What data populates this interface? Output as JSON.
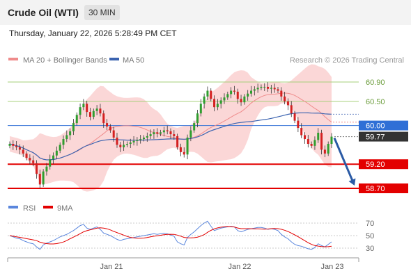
{
  "header": {
    "title": "Crude Oil (WTI)",
    "timeframe": "30 MIN",
    "datetime": "Thursday, January 22, 2026 5:28:49 PM CET"
  },
  "legend": {
    "ma20_bb": "MA 20 + Bollinger Bands",
    "ma50": "MA 50",
    "copyright": "Research © 2026 Trading Central"
  },
  "rsi_legend": {
    "rsi": "RSI",
    "ma9": "9MA"
  },
  "colors": {
    "candle_up": "#2f9e2f",
    "candle_down": "#d42020",
    "bollinger": "#f9caca",
    "ma20": "#ef8b8b",
    "ma50": "#3b63b0",
    "support": "#e30000",
    "resistance_minor": "#a6cf7a",
    "pivot": "#2f6fd6",
    "last_price": "#333333",
    "rsi": "#5a86dd",
    "rsi_ma9": "#e30000",
    "arrow": "#2a5aa5"
  },
  "chart_data": [
    {
      "type": "candlestick",
      "title": "Crude Oil (WTI)",
      "timeframe": "30 MIN",
      "x_ticks": [
        "Jan 21",
        "Jan 22",
        "Jan 23"
      ],
      "ylim": [
        58.62,
        61.1
      ],
      "levels": [
        {
          "value": 60.9,
          "label": "60.90",
          "kind": "resistance"
        },
        {
          "value": 60.5,
          "label": "60.50",
          "kind": "resistance"
        },
        {
          "value": 60.0,
          "label": "60.00",
          "kind": "pivot"
        },
        {
          "value": 59.77,
          "label": "59.77",
          "kind": "last"
        },
        {
          "value": 59.2,
          "label": "59.20",
          "kind": "support"
        },
        {
          "value": 58.7,
          "label": "58.70",
          "kind": "support"
        }
      ],
      "close": [
        59.62,
        59.58,
        59.55,
        59.5,
        59.42,
        59.33,
        59.28,
        59.22,
        59.0,
        58.78,
        59.05,
        59.15,
        59.3,
        59.38,
        59.48,
        59.6,
        59.72,
        59.8,
        59.88,
        60.05,
        60.22,
        60.38,
        60.45,
        60.28,
        60.18,
        60.3,
        60.35,
        60.25,
        60.05,
        59.98,
        59.9,
        59.75,
        59.6,
        59.55,
        59.6,
        59.62,
        59.65,
        59.68,
        59.7,
        59.72,
        59.75,
        59.78,
        59.82,
        59.86,
        59.83,
        59.86,
        59.9,
        59.88,
        59.82,
        59.78,
        59.55,
        59.45,
        59.4,
        59.75,
        59.9,
        60.05,
        60.25,
        60.45,
        60.6,
        60.72,
        60.55,
        60.38,
        60.45,
        60.52,
        60.58,
        60.65,
        60.72,
        60.7,
        60.55,
        60.48,
        60.6,
        60.66,
        60.72,
        60.75,
        60.78,
        60.8,
        60.8,
        60.76,
        60.78,
        60.75,
        60.72,
        60.6,
        60.5,
        60.42,
        60.25,
        60.1,
        59.95,
        59.8,
        59.72,
        59.62,
        59.58,
        59.7,
        59.85,
        59.5,
        59.42,
        59.62,
        59.77
      ],
      "rsi": [
        50,
        48,
        46,
        45,
        42,
        40,
        38,
        37,
        32,
        28,
        35,
        38,
        40,
        42,
        45,
        48,
        50,
        52,
        55,
        58,
        62,
        66,
        68,
        62,
        60,
        62,
        64,
        60,
        54,
        52,
        50,
        47,
        44,
        42,
        44,
        45,
        46,
        47,
        48,
        49,
        50,
        51,
        52,
        53,
        52,
        53,
        54,
        53,
        51,
        49,
        40,
        37,
        35,
        47,
        52,
        56,
        61,
        66,
        70,
        73,
        65,
        58,
        60,
        62,
        63,
        64,
        65,
        64,
        58,
        56,
        58,
        60,
        61,
        62,
        63,
        63,
        62,
        60,
        61,
        60,
        58,
        52,
        48,
        45,
        40,
        36,
        34,
        33,
        31,
        29,
        28,
        31,
        37,
        34,
        32,
        36,
        40
      ],
      "rsi_ticks": [
        70,
        50,
        30
      ],
      "rsi_ylim": [
        20,
        75
      ],
      "series": [
        {
          "name": "RSI"
        },
        {
          "name": "9MA"
        }
      ],
      "annotations": [
        "arrow pointing down to 58.70"
      ]
    }
  ]
}
